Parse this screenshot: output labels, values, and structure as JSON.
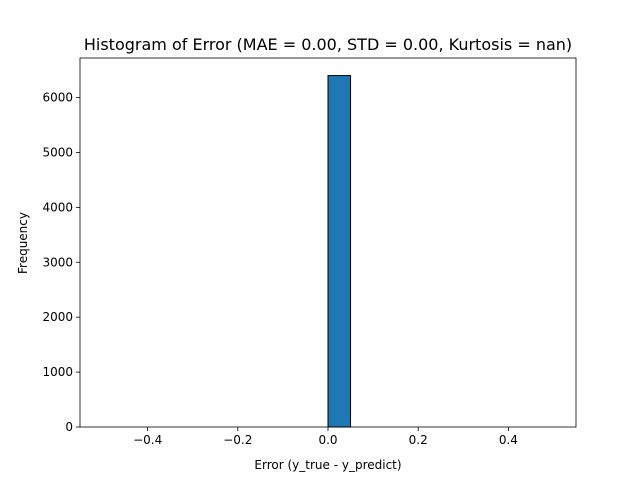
{
  "chart_data": {
    "type": "bar",
    "title": "Histogram of Error (MAE = 0.00, STD = 0.00, Kurtosis = nan)",
    "xlabel": "Error (y_true - y_predict)",
    "ylabel": "Frequency",
    "xlim": [
      -0.55,
      0.55
    ],
    "ylim": [
      0,
      6720
    ],
    "x_ticks": [
      -0.4,
      -0.2,
      0.0,
      0.2,
      0.4
    ],
    "x_tick_labels": [
      "−0.4",
      "−0.2",
      "0.0",
      "0.2",
      "0.4"
    ],
    "y_ticks": [
      0,
      1000,
      2000,
      3000,
      4000,
      5000,
      6000
    ],
    "y_tick_labels": [
      "0",
      "1000",
      "2000",
      "3000",
      "4000",
      "5000",
      "6000"
    ],
    "bin_edges": [
      -0.5,
      -0.45,
      -0.4,
      -0.35,
      -0.3,
      -0.25,
      -0.2,
      -0.15,
      -0.1,
      -0.05,
      0.0,
      0.05,
      0.1,
      0.15,
      0.2,
      0.25,
      0.3,
      0.35,
      0.4,
      0.45,
      0.5
    ],
    "counts": [
      0,
      0,
      0,
      0,
      0,
      0,
      0,
      0,
      0,
      0,
      6400,
      0,
      0,
      0,
      0,
      0,
      0,
      0,
      0,
      0
    ],
    "bar_color": "#1f77b4",
    "edge_color": "#000000",
    "grid": false,
    "legend": "none"
  }
}
